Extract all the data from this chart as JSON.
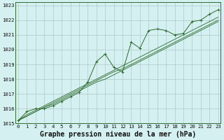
{
  "title": "Graphe pression niveau de la mer (hPa)",
  "bg_color": "#d4f0f0",
  "grid_color": "#b0c8c8",
  "line_color": "#2d6a2d",
  "x_ticks": [
    0,
    1,
    2,
    3,
    4,
    5,
    6,
    7,
    8,
    9,
    10,
    11,
    12,
    13,
    14,
    15,
    16,
    17,
    18,
    19,
    20,
    21,
    22,
    23
  ],
  "ylim": [
    1015.0,
    1023.2
  ],
  "xlim": [
    -0.3,
    23.3
  ],
  "series_marked": [
    1015.2,
    1015.8,
    1016.0,
    1016.0,
    1016.2,
    1016.5,
    1016.8,
    1017.1,
    1017.8,
    1019.2,
    1019.7,
    1018.8,
    1018.5,
    1020.5,
    1020.1,
    1021.3,
    1021.4,
    1021.3,
    1021.0,
    1021.1,
    1021.9,
    1022.0,
    1022.4,
    1022.7
  ],
  "series_smooth": [
    [
      1015.2,
      1015.5,
      1015.8,
      1016.1,
      1016.3,
      1016.6,
      1016.9,
      1017.2,
      1017.5,
      1017.8,
      1018.0,
      1018.3,
      1018.6,
      1018.9,
      1019.2,
      1019.5,
      1019.8,
      1020.1,
      1020.4,
      1020.7,
      1021.0,
      1021.3,
      1021.6,
      1021.9
    ],
    [
      1015.2,
      1015.5,
      1015.8,
      1016.1,
      1016.4,
      1016.7,
      1017.0,
      1017.3,
      1017.6,
      1017.9,
      1018.2,
      1018.5,
      1018.7,
      1019.0,
      1019.3,
      1019.6,
      1019.9,
      1020.2,
      1020.5,
      1020.8,
      1021.1,
      1021.4,
      1021.7,
      1022.0
    ],
    [
      1015.2,
      1015.6,
      1015.9,
      1016.2,
      1016.5,
      1016.8,
      1017.1,
      1017.4,
      1017.7,
      1018.0,
      1018.3,
      1018.6,
      1018.9,
      1019.2,
      1019.5,
      1019.8,
      1020.1,
      1020.4,
      1020.7,
      1021.0,
      1021.3,
      1021.6,
      1021.9,
      1022.2
    ]
  ],
  "yticks": [
    1015,
    1016,
    1017,
    1018,
    1019,
    1020,
    1021,
    1022,
    1023
  ],
  "title_fontsize": 7.0,
  "tick_fontsize": 5.2
}
